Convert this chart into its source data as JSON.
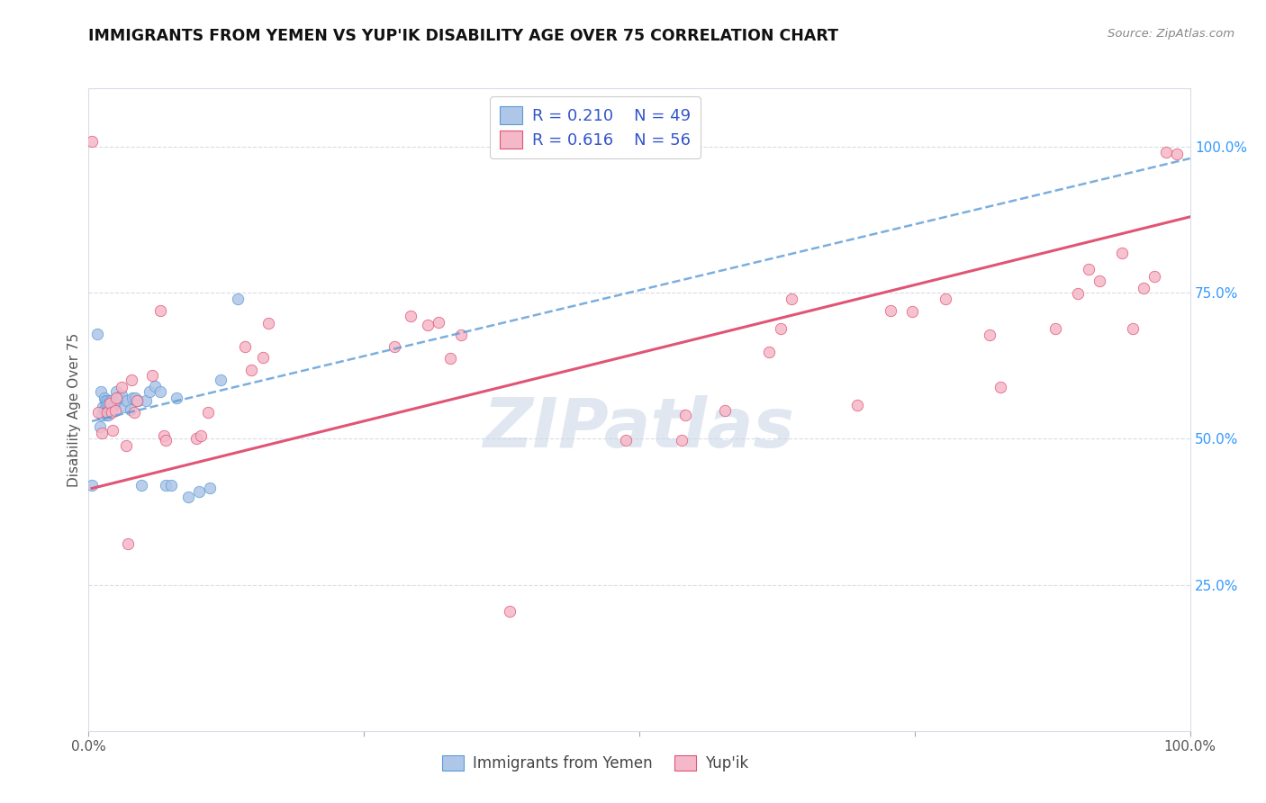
{
  "title": "IMMIGRANTS FROM YEMEN VS YUP'IK DISABILITY AGE OVER 75 CORRELATION CHART",
  "source": "Source: ZipAtlas.com",
  "ylabel": "Disability Age Over 75",
  "xlim": [
    0.0,
    1.0
  ],
  "ylim": [
    0.0,
    1.1
  ],
  "ytick_positions": [
    0.25,
    0.5,
    0.75,
    1.0
  ],
  "ytick_labels_right": [
    "25.0%",
    "50.0%",
    "75.0%",
    "100.0%"
  ],
  "legend_r1": "R = 0.210",
  "legend_n1": "N = 49",
  "legend_r2": "R = 0.616",
  "legend_n2": "N = 56",
  "color_blue": "#aec6e8",
  "color_pink": "#f5b8c8",
  "trendline_blue": "#5b9bd5",
  "trendline_pink": "#e05575",
  "legend_text_color": "#3355cc",
  "watermark_color": "#ccd8e8",
  "blue_scatter_x": [
    0.003,
    0.008,
    0.01,
    0.011,
    0.012,
    0.013,
    0.014,
    0.014,
    0.015,
    0.015,
    0.016,
    0.016,
    0.017,
    0.017,
    0.018,
    0.018,
    0.019,
    0.019,
    0.02,
    0.02,
    0.021,
    0.021,
    0.022,
    0.023,
    0.024,
    0.025,
    0.026,
    0.027,
    0.028,
    0.03,
    0.032,
    0.035,
    0.038,
    0.04,
    0.042,
    0.045,
    0.048,
    0.052,
    0.055,
    0.06,
    0.065,
    0.07,
    0.075,
    0.08,
    0.09,
    0.1,
    0.11,
    0.12,
    0.135
  ],
  "blue_scatter_y": [
    0.42,
    0.68,
    0.52,
    0.58,
    0.54,
    0.555,
    0.55,
    0.57,
    0.545,
    0.565,
    0.54,
    0.56,
    0.545,
    0.565,
    0.54,
    0.56,
    0.545,
    0.565,
    0.55,
    0.56,
    0.55,
    0.565,
    0.555,
    0.56,
    0.565,
    0.58,
    0.57,
    0.565,
    0.57,
    0.575,
    0.555,
    0.565,
    0.55,
    0.57,
    0.57,
    0.565,
    0.42,
    0.565,
    0.58,
    0.59,
    0.58,
    0.42,
    0.42,
    0.57,
    0.4,
    0.41,
    0.415,
    0.6,
    0.74
  ],
  "pink_scatter_x": [
    0.003,
    0.009,
    0.012,
    0.017,
    0.019,
    0.021,
    0.022,
    0.024,
    0.025,
    0.03,
    0.034,
    0.036,
    0.039,
    0.041,
    0.044,
    0.058,
    0.065,
    0.068,
    0.07,
    0.098,
    0.102,
    0.108,
    0.142,
    0.148,
    0.158,
    0.163,
    0.278,
    0.292,
    0.308,
    0.318,
    0.328,
    0.338,
    0.382,
    0.488,
    0.538,
    0.542,
    0.578,
    0.618,
    0.628,
    0.638,
    0.698,
    0.728,
    0.748,
    0.778,
    0.818,
    0.828,
    0.878,
    0.898,
    0.908,
    0.918,
    0.938,
    0.948,
    0.958,
    0.968,
    0.978,
    0.988
  ],
  "pink_scatter_y": [
    1.01,
    0.545,
    0.51,
    0.545,
    0.56,
    0.545,
    0.515,
    0.548,
    0.57,
    0.588,
    0.488,
    0.32,
    0.6,
    0.545,
    0.565,
    0.608,
    0.72,
    0.505,
    0.498,
    0.5,
    0.505,
    0.545,
    0.658,
    0.618,
    0.64,
    0.698,
    0.658,
    0.71,
    0.695,
    0.7,
    0.638,
    0.678,
    0.205,
    0.498,
    0.498,
    0.54,
    0.548,
    0.648,
    0.688,
    0.74,
    0.558,
    0.72,
    0.718,
    0.74,
    0.678,
    0.588,
    0.688,
    0.748,
    0.79,
    0.77,
    0.818,
    0.688,
    0.758,
    0.778,
    0.99,
    0.988
  ],
  "blue_trend_x": [
    0.003,
    1.0
  ],
  "blue_trend_y": [
    0.53,
    0.98
  ],
  "pink_trend_x": [
    0.003,
    1.0
  ],
  "pink_trend_y": [
    0.415,
    0.88
  ],
  "background_color": "#ffffff",
  "grid_color": "#d8dce8",
  "marker_size": 80
}
